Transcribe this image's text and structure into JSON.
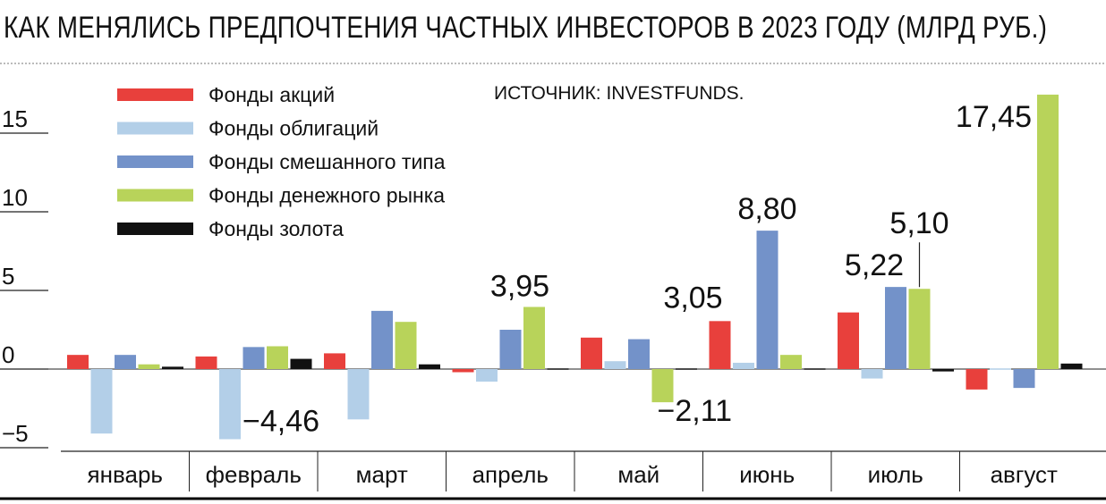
{
  "title": "КАК МЕНЯЛИСЬ ПРЕДПОЧТЕНИЯ ЧАСТНЫХ ИНВЕСТОРОВ В 2023 ГОДУ (МЛРД РУБ.)",
  "source": "ИСТОЧНИК: INVESTFUNDS.",
  "chart_data": {
    "type": "bar",
    "title": "КАК МЕНЯЛИСЬ ПРЕДПОЧТЕНИЯ ЧАСТНЫХ ИНВЕСТОРОВ В 2023 ГОДУ (МЛРД РУБ.)",
    "xlabel": "",
    "ylabel": "",
    "ylim": [
      -5,
      17.45
    ],
    "yticks": [
      15,
      10,
      5,
      0,
      -5
    ],
    "ytick_labels": [
      "15",
      "10",
      "5",
      "0",
      "−5"
    ],
    "grid": false,
    "legend_position": "top-left",
    "categories": [
      "январь",
      "февраль",
      "март",
      "апрель",
      "май",
      "июнь",
      "июль",
      "август"
    ],
    "series": [
      {
        "name": "Фонды акций",
        "color": "#e8403c",
        "values": [
          0.9,
          0.8,
          1.0,
          -0.2,
          2.0,
          3.05,
          3.6,
          -1.3
        ]
      },
      {
        "name": "Фонды облигаций",
        "color": "#b3cfe8",
        "values": [
          -4.1,
          -4.46,
          -3.2,
          -0.8,
          0.5,
          0.4,
          -0.6,
          0.0
        ]
      },
      {
        "name": "Фонды смешанного типа",
        "color": "#7392c9",
        "values": [
          0.9,
          1.4,
          3.7,
          2.5,
          1.9,
          8.8,
          5.22,
          -1.2
        ]
      },
      {
        "name": "Фонды денежного рынка",
        "color": "#b8d35a",
        "values": [
          0.3,
          1.45,
          3.0,
          3.95,
          -2.11,
          0.9,
          5.1,
          17.45
        ]
      },
      {
        "name": "Фонды золота",
        "color": "#111111",
        "values": [
          0.15,
          0.65,
          0.3,
          0.05,
          0.05,
          0.05,
          -0.15,
          0.35
        ]
      }
    ],
    "annotations": [
      {
        "text": "3,95",
        "category": "апрель",
        "series": "Фонды денежного рынка"
      },
      {
        "text": "−4,46",
        "category": "февраль",
        "series": "Фонды облигаций"
      },
      {
        "text": "−2,11",
        "category": "май",
        "series": "Фонды денежного рынка"
      },
      {
        "text": "3,05",
        "category": "июнь",
        "series": "Фонды акций"
      },
      {
        "text": "8,80",
        "category": "июнь",
        "series": "Фонды смешанного типа"
      },
      {
        "text": "5,22",
        "category": "июль",
        "series": "Фонды смешанного типа"
      },
      {
        "text": "5,10",
        "category": "июль",
        "series": "Фонды денежного рынка"
      },
      {
        "text": "17,45",
        "category": "август",
        "series": "Фонды денежного рынка"
      }
    ]
  }
}
